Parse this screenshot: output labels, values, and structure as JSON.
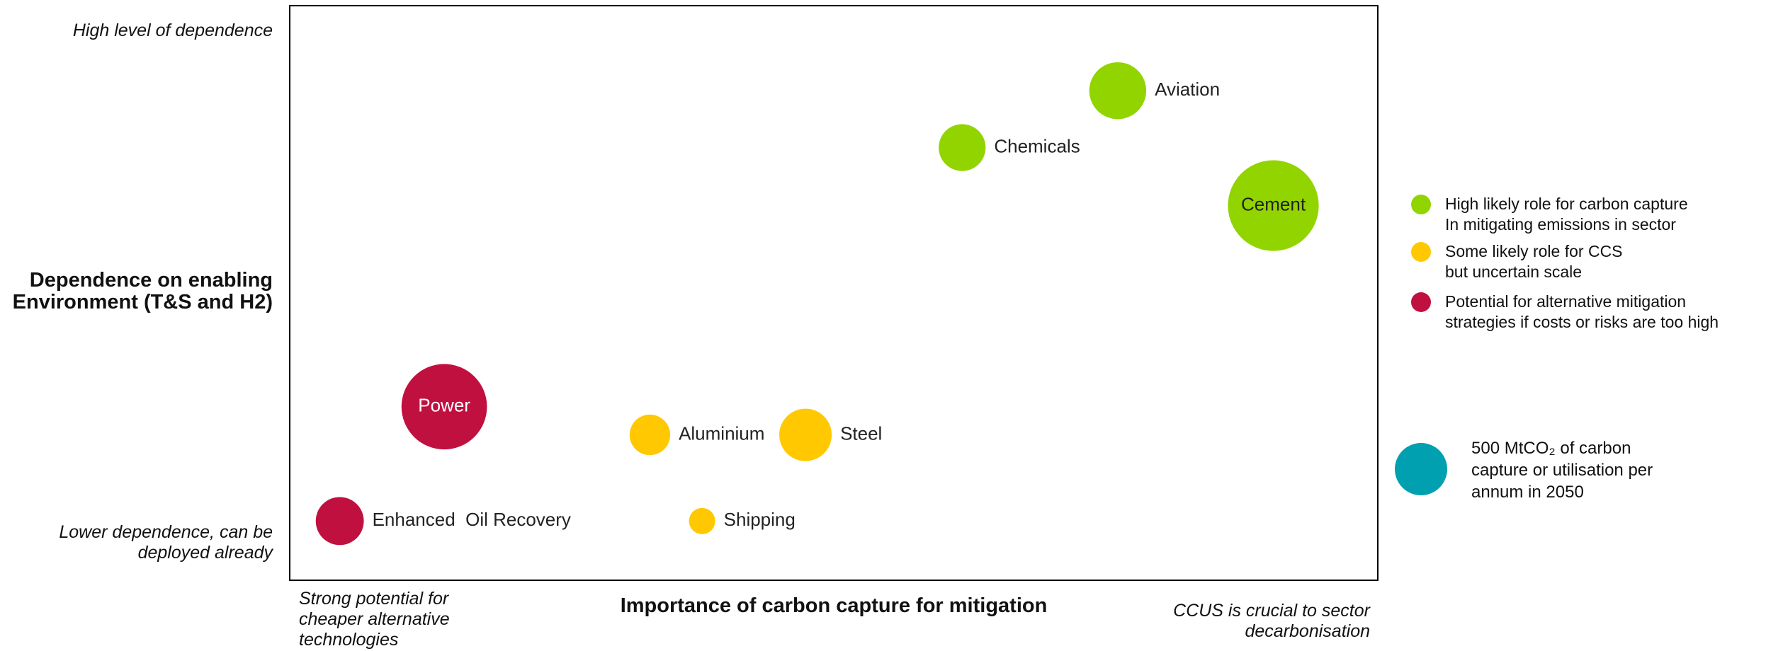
{
  "chart_data": {
    "type": "bubble",
    "xlim": [
      0,
      10
    ],
    "ylim": [
      0,
      10
    ],
    "y_axis_label": "Dependence on enabling\nEnvironment (T&S and H2)",
    "y_high_label": "High level of dependence",
    "y_low_label": "Lower dependence, can be\ndeployed already",
    "x_axis_label": "Importance of carbon capture for mitigation",
    "x_low_label": "Strong potential for\ncheaper alternative\ntechnologies",
    "x_high_label": "CCUS is crucial to sector\ndecarbonisation",
    "series": [
      {
        "name": "High likely role for carbon capture\nIn mitigating emissions in sector",
        "color": "#92d400",
        "points": [
          {
            "label": "Aviation",
            "x": 7.61,
            "y": 8.52,
            "size": 590
          },
          {
            "label": "Chemicals",
            "x": 6.18,
            "y": 7.53,
            "size": 400
          },
          {
            "label": "Cement",
            "x": 9.04,
            "y": 6.52,
            "size": 1500
          }
        ]
      },
      {
        "name": "Some likely role for CCS\nbut uncertain scale",
        "color": "#ffc800",
        "points": [
          {
            "label": "Aluminium",
            "x": 3.31,
            "y": 2.53,
            "size": 300
          },
          {
            "label": "Steel",
            "x": 4.74,
            "y": 2.53,
            "size": 500
          },
          {
            "label": "Shipping",
            "x": 3.79,
            "y": 1.03,
            "size": 125
          }
        ]
      },
      {
        "name": "Potential for alternative mitigation\nstrategies if costs or risks are too high",
        "color": "#c0103f",
        "points": [
          {
            "label": "Power",
            "x": 1.42,
            "y": 3.02,
            "size": 1330
          },
          {
            "label": "Enhanced  Oil Recovery",
            "x": 0.46,
            "y": 1.03,
            "size": 420
          }
        ]
      }
    ],
    "size_legend": {
      "value": 500,
      "color": "#00a0b0",
      "label": "500 MtCO₂ of carbon\ncapture or utilisation per\nannum in 2050"
    }
  }
}
